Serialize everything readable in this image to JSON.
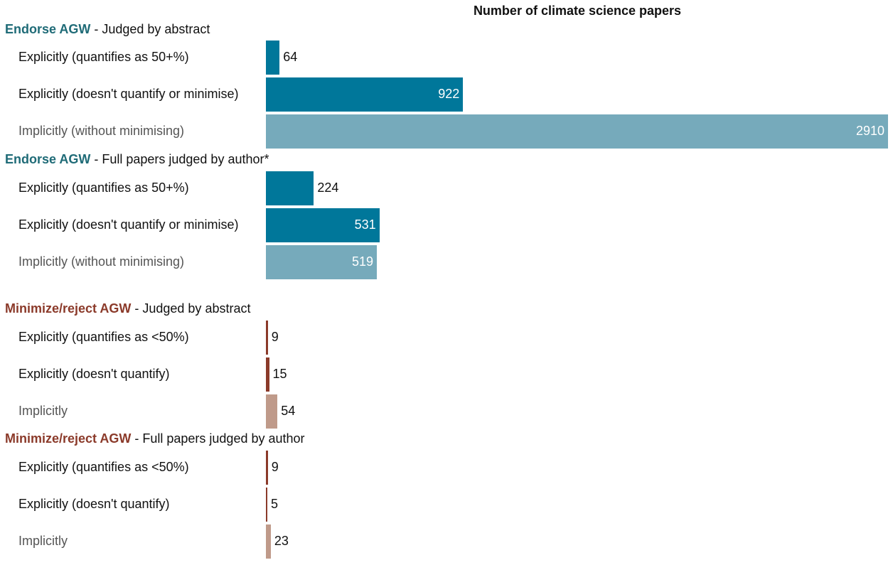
{
  "chart_data": {
    "type": "bar",
    "orientation": "horizontal",
    "title": "Number of climate science papers",
    "colors": {
      "endorse_header": "#1f6b77",
      "endorse_explicit": "#00779a",
      "endorse_implicit": "#76aabb",
      "reject_header": "#8b3a2a",
      "reject_explicit": "#8b3a2a",
      "reject_implicit": "#bf9a8a",
      "text_dark": "#111111",
      "text_muted": "#555555",
      "label_inside": "#ffffff"
    },
    "groups": [
      {
        "name": "Endorse AGW",
        "subtitle": " - Judged by abstract",
        "kind": "endorse",
        "rows": [
          {
            "label": "Explicitly (quantifies as 50+%)",
            "value": 64,
            "style": "explicit"
          },
          {
            "label": "Explicitly (doesn't quantify or minimise)",
            "value": 922,
            "style": "explicit"
          },
          {
            "label": "Implicitly (without minimising)",
            "value": 2910,
            "style": "implicit"
          }
        ]
      },
      {
        "name": "Endorse AGW",
        "subtitle": " - Full papers judged by author*",
        "kind": "endorse",
        "rows": [
          {
            "label": "Explicitly (quantifies as 50+%)",
            "value": 224,
            "style": "explicit"
          },
          {
            "label": "Explicitly (doesn't quantify or minimise)",
            "value": 531,
            "style": "explicit"
          },
          {
            "label": "Implicitly (without minimising)",
            "value": 519,
            "style": "implicit"
          }
        ]
      },
      {
        "name": "Minimize/reject AGW",
        "subtitle": " - Judged by abstract",
        "kind": "reject",
        "rows": [
          {
            "label": "Explicitly (quantifies as <50%)",
            "value": 9,
            "style": "explicit"
          },
          {
            "label": "Explicitly (doesn't quantify)",
            "value": 15,
            "style": "explicit"
          },
          {
            "label": "Implicitly",
            "value": 54,
            "style": "implicit"
          }
        ]
      },
      {
        "name": "Minimize/reject AGW",
        "subtitle": " - Full papers judged by author",
        "kind": "reject",
        "rows": [
          {
            "label": "Explicitly (quantifies as <50%)",
            "value": 9,
            "style": "explicit"
          },
          {
            "label": "Explicitly (doesn't quantify)",
            "value": 5,
            "style": "explicit"
          },
          {
            "label": "Implicitly",
            "value": 23,
            "style": "implicit"
          }
        ]
      }
    ],
    "xlim": [
      0,
      2910
    ],
    "grid": false,
    "legend": "none"
  }
}
